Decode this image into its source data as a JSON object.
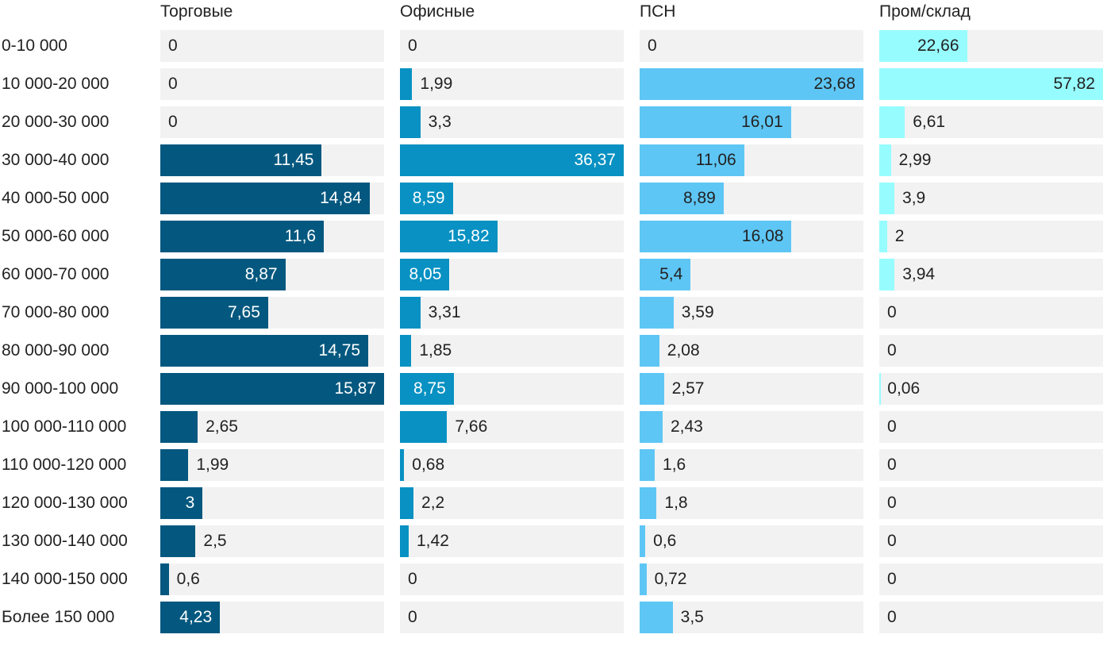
{
  "chart_data": {
    "type": "bar",
    "orientation": "horizontal",
    "layout": "small-multiples",
    "categories": [
      "0-10 000",
      "10 000-20 000",
      "20 000-30 000",
      "30 000-40 000",
      "40 000-50 000",
      "50 000-60 000",
      "60 000-70 000",
      "70 000-80 000",
      "80 000-90 000",
      "90 000-100 000",
      "100 000-110 000",
      "110 000-120 000",
      "120 000-130 000",
      "130 000-140 000",
      "140 000-150 000",
      "Более 150 000"
    ],
    "series": [
      {
        "name": "Торговые",
        "color": "#04587f",
        "label_color_inside": "#ffffff",
        "values": [
          0,
          0,
          0,
          11.45,
          14.84,
          11.6,
          8.87,
          7.65,
          14.75,
          15.87,
          2.65,
          1.99,
          3,
          2.5,
          0.6,
          4.23
        ],
        "labels": [
          "0",
          "0",
          "0",
          "11,45",
          "14,84",
          "11,6",
          "8,87",
          "7,65",
          "14,75",
          "15,87",
          "2,65",
          "1,99",
          "3",
          "2,5",
          "0,6",
          "4,23"
        ]
      },
      {
        "name": "Офисные",
        "color": "#0891c2",
        "label_color_inside": "#ffffff",
        "values": [
          0,
          1.99,
          3.3,
          36.37,
          8.59,
          15.82,
          8.05,
          3.31,
          1.85,
          8.75,
          7.66,
          0.68,
          2.2,
          1.42,
          0,
          0
        ],
        "labels": [
          "0",
          "1,99",
          "3,3",
          "36,37",
          "8,59",
          "15,82",
          "8,05",
          "3,31",
          "1,85",
          "8,75",
          "7,66",
          "0,68",
          "2,2",
          "1,42",
          "0",
          "0"
        ]
      },
      {
        "name": "ПСН",
        "color": "#5ec6f5",
        "label_color_inside": "#222222",
        "values": [
          0,
          23.68,
          16.01,
          11.06,
          8.89,
          16.08,
          5.4,
          3.59,
          2.08,
          2.57,
          2.43,
          1.6,
          1.8,
          0.6,
          0.72,
          3.5
        ],
        "labels": [
          "0",
          "23,68",
          "16,01",
          "11,06",
          "8,89",
          "16,08",
          "5,4",
          "3,59",
          "2,08",
          "2,57",
          "2,43",
          "1,6",
          "1,8",
          "0,6",
          "0,72",
          "3,5"
        ]
      },
      {
        "name": "Пром/склад",
        "color": "#97fcfe",
        "label_color_inside": "#222222",
        "values": [
          22.66,
          57.82,
          6.61,
          2.99,
          3.9,
          2,
          3.94,
          0,
          0,
          0.06,
          0,
          0,
          0,
          0,
          0,
          0
        ],
        "labels": [
          "22,66",
          "57,82",
          "6,61",
          "2,99",
          "3,9",
          "2",
          "3,94",
          "0",
          "0",
          "0,06",
          "0",
          "0",
          "0",
          "0",
          "0",
          "0"
        ]
      }
    ],
    "background_color": "#f2f2f2",
    "grid": false,
    "legend": "none"
  }
}
